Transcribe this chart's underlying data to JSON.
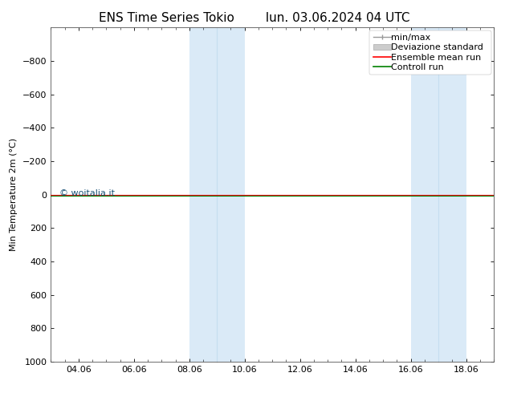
{
  "title": "ENS Time Series Tokio",
  "title2": "lun. 03.06.2024 04 UTC",
  "ylabel": "Min Temperature 2m (°C)",
  "xlabel": "",
  "xtick_labels": [
    "04.06",
    "06.06",
    "08.06",
    "10.06",
    "12.06",
    "14.06",
    "16.06",
    "18.06"
  ],
  "xtick_positions": [
    1,
    3,
    5,
    7,
    9,
    11,
    13,
    15
  ],
  "xlim": [
    0,
    16
  ],
  "ylim": [
    -1000,
    1000
  ],
  "yticks": [
    -800,
    -600,
    -400,
    -200,
    0,
    200,
    400,
    600,
    800,
    1000
  ],
  "shaded_bands": [
    {
      "x_start": 5.0,
      "x_mid": 6.0,
      "x_end": 7.0
    },
    {
      "x_start": 13.0,
      "x_mid": 14.0,
      "x_end": 15.0
    }
  ],
  "shaded_color": "#daeaf7",
  "shaded_mid_color": "#c5ddf0",
  "ensemble_mean_color": "#ff0000",
  "control_run_color": "#008000",
  "minmax_color": "#999999",
  "std_color": "#cccccc",
  "background_color": "#ffffff",
  "watermark": "© woitalia.it",
  "watermark_color": "#1a5276",
  "spine_color": "#555555",
  "tick_fontsize": 8,
  "ylabel_fontsize": 8,
  "title_fontsize": 11,
  "legend_fontsize": 8
}
